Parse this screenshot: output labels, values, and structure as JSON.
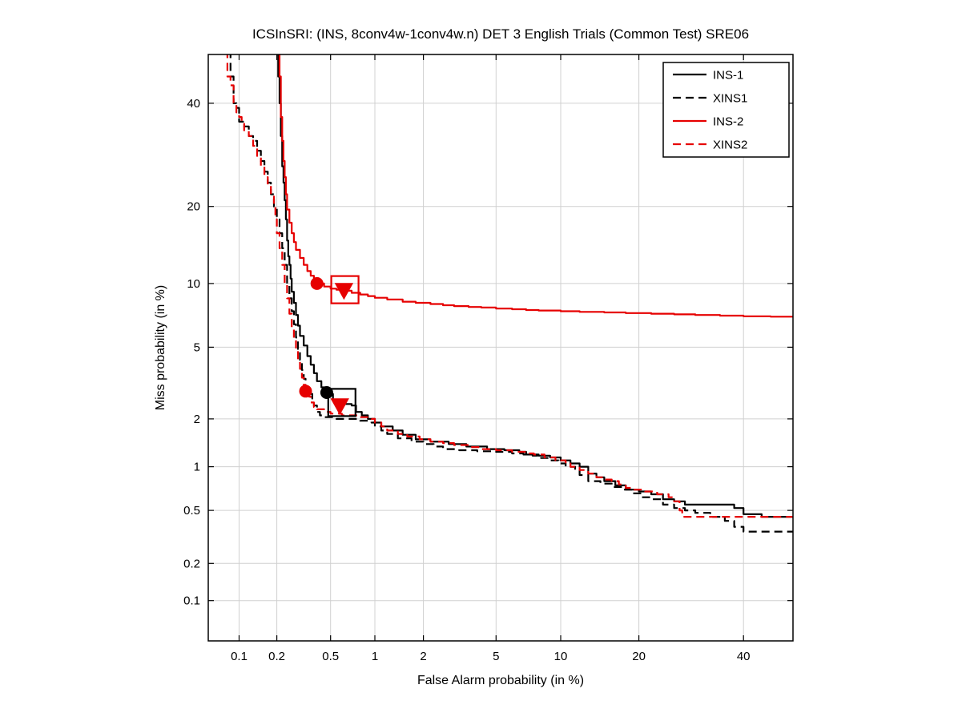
{
  "chart_data": {
    "type": "line",
    "subtype": "DET-curve",
    "scale": "probit-probit",
    "title": "ICSInSRI: (INS, 8conv4w-1conv4w.n) DET 3 English Trials (Common Test) SRE06",
    "xlabel": "False Alarm probability (in %)",
    "ylabel": "Miss probability (in %)",
    "xlim_percent": [
      0.055,
      51
    ],
    "ylim_percent": [
      0.045,
      51
    ],
    "xticks": [
      0.1,
      0.2,
      0.5,
      1,
      2,
      5,
      10,
      20,
      40
    ],
    "yticks": [
      0.1,
      0.2,
      0.5,
      1,
      2,
      5,
      10,
      20,
      40
    ],
    "grid": true,
    "legend_position": "top-right",
    "colors": {
      "black": "#000000",
      "red": "#e60000",
      "grid": "#d0d0d0"
    },
    "series": [
      {
        "name": "INS-1",
        "color": "#000000",
        "dash": "solid",
        "points": [
          [
            0.205,
            52
          ],
          [
            0.205,
            46
          ],
          [
            0.21,
            42
          ],
          [
            0.21,
            40
          ],
          [
            0.215,
            36
          ],
          [
            0.215,
            33
          ],
          [
            0.22,
            30
          ],
          [
            0.22,
            27
          ],
          [
            0.225,
            24
          ],
          [
            0.23,
            21
          ],
          [
            0.235,
            18
          ],
          [
            0.24,
            15
          ],
          [
            0.245,
            13
          ],
          [
            0.25,
            12
          ],
          [
            0.255,
            10.5
          ],
          [
            0.26,
            9.2
          ],
          [
            0.27,
            8.2
          ],
          [
            0.28,
            7.2
          ],
          [
            0.29,
            6.4
          ],
          [
            0.3,
            5.7
          ],
          [
            0.32,
            5.1
          ],
          [
            0.34,
            4.5
          ],
          [
            0.36,
            4.05
          ],
          [
            0.38,
            3.65
          ],
          [
            0.4,
            3.3
          ],
          [
            0.43,
            3.05
          ],
          [
            0.46,
            2.85
          ],
          [
            0.5,
            2.8
          ],
          [
            0.52,
            2.6
          ],
          [
            0.55,
            2.5
          ],
          [
            0.62,
            2.45
          ],
          [
            0.7,
            2.4
          ],
          [
            0.75,
            2.2
          ],
          [
            0.82,
            2.1
          ],
          [
            0.9,
            2.0
          ],
          [
            1.0,
            1.9
          ],
          [
            1.1,
            1.8
          ],
          [
            1.3,
            1.7
          ],
          [
            1.5,
            1.6
          ],
          [
            1.8,
            1.5
          ],
          [
            2.2,
            1.45
          ],
          [
            2.8,
            1.4
          ],
          [
            3.5,
            1.35
          ],
          [
            4.5,
            1.3
          ],
          [
            5.5,
            1.28
          ],
          [
            6.5,
            1.25
          ],
          [
            7.0,
            1.2
          ],
          [
            8.0,
            1.18
          ],
          [
            9.0,
            1.15
          ],
          [
            10.0,
            1.1
          ],
          [
            11.0,
            1.05
          ],
          [
            12.0,
            1.0
          ],
          [
            13.0,
            0.9
          ],
          [
            14.0,
            0.85
          ],
          [
            15.0,
            0.8
          ],
          [
            16.5,
            0.75
          ],
          [
            18.0,
            0.7
          ],
          [
            20.0,
            0.68
          ],
          [
            22.0,
            0.65
          ],
          [
            24.0,
            0.6
          ],
          [
            26.0,
            0.58
          ],
          [
            28.0,
            0.55
          ],
          [
            33.0,
            0.55
          ],
          [
            38.0,
            0.52
          ],
          [
            40.0,
            0.47
          ],
          [
            44.0,
            0.45
          ],
          [
            52.0,
            0.45
          ]
        ]
      },
      {
        "name": "XINS1",
        "color": "#000000",
        "dash": "dashed",
        "points": [
          [
            0.085,
            52
          ],
          [
            0.085,
            46
          ],
          [
            0.09,
            43
          ],
          [
            0.09,
            40
          ],
          [
            0.095,
            39
          ],
          [
            0.1,
            38
          ],
          [
            0.1,
            36
          ],
          [
            0.11,
            35
          ],
          [
            0.12,
            33
          ],
          [
            0.13,
            32
          ],
          [
            0.14,
            30
          ],
          [
            0.15,
            28
          ],
          [
            0.16,
            26
          ],
          [
            0.17,
            24
          ],
          [
            0.18,
            22
          ],
          [
            0.19,
            20
          ],
          [
            0.2,
            18
          ],
          [
            0.21,
            16
          ],
          [
            0.22,
            14
          ],
          [
            0.23,
            12
          ],
          [
            0.24,
            10
          ],
          [
            0.25,
            8.6
          ],
          [
            0.26,
            7.5
          ],
          [
            0.27,
            6.5
          ],
          [
            0.28,
            5.6
          ],
          [
            0.29,
            4.9
          ],
          [
            0.3,
            4.3
          ],
          [
            0.31,
            3.8
          ],
          [
            0.32,
            3.4
          ],
          [
            0.33,
            3.0
          ],
          [
            0.35,
            2.8
          ],
          [
            0.37,
            2.6
          ],
          [
            0.38,
            2.4
          ],
          [
            0.4,
            2.2
          ],
          [
            0.42,
            2.1
          ],
          [
            0.45,
            2.05
          ],
          [
            0.55,
            2.0
          ],
          [
            0.7,
            2.0
          ],
          [
            0.8,
            1.95
          ],
          [
            0.95,
            1.9
          ],
          [
            1.0,
            1.8
          ],
          [
            1.1,
            1.7
          ],
          [
            1.2,
            1.62
          ],
          [
            1.4,
            1.52
          ],
          [
            1.7,
            1.45
          ],
          [
            2.0,
            1.4
          ],
          [
            2.3,
            1.35
          ],
          [
            2.6,
            1.3
          ],
          [
            3.2,
            1.28
          ],
          [
            4.0,
            1.26
          ],
          [
            5.0,
            1.25
          ],
          [
            6.0,
            1.22
          ],
          [
            6.8,
            1.2
          ],
          [
            7.5,
            1.18
          ],
          [
            8.2,
            1.14
          ],
          [
            9.0,
            1.1
          ],
          [
            9.8,
            1.05
          ],
          [
            10.5,
            1.0
          ],
          [
            11.5,
            0.95
          ],
          [
            12.0,
            0.88
          ],
          [
            13.0,
            0.8
          ],
          [
            14.5,
            0.77
          ],
          [
            16.0,
            0.73
          ],
          [
            17.5,
            0.7
          ],
          [
            19.0,
            0.66
          ],
          [
            20.5,
            0.62
          ],
          [
            22.0,
            0.6
          ],
          [
            24.0,
            0.55
          ],
          [
            26.0,
            0.52
          ],
          [
            28.0,
            0.5
          ],
          [
            30.0,
            0.48
          ],
          [
            33.0,
            0.45
          ],
          [
            36.0,
            0.42
          ],
          [
            38.0,
            0.38
          ],
          [
            40.0,
            0.35
          ],
          [
            52.0,
            0.35
          ]
        ]
      },
      {
        "name": "INS-2",
        "color": "#e60000",
        "dash": "solid",
        "points": [
          [
            0.21,
            52
          ],
          [
            0.21,
            46
          ],
          [
            0.215,
            42
          ],
          [
            0.215,
            37
          ],
          [
            0.22,
            32
          ],
          [
            0.225,
            28
          ],
          [
            0.23,
            25
          ],
          [
            0.235,
            22
          ],
          [
            0.24,
            19.5
          ],
          [
            0.25,
            17.5
          ],
          [
            0.26,
            16
          ],
          [
            0.27,
            14.8
          ],
          [
            0.28,
            13.8
          ],
          [
            0.3,
            12.8
          ],
          [
            0.32,
            12.0
          ],
          [
            0.34,
            11.3
          ],
          [
            0.36,
            10.8
          ],
          [
            0.38,
            10.3
          ],
          [
            0.4,
            10.0
          ],
          [
            0.45,
            9.7
          ],
          [
            0.5,
            9.5
          ],
          [
            0.55,
            9.4
          ],
          [
            0.62,
            9.3
          ],
          [
            0.7,
            9.1
          ],
          [
            0.8,
            8.95
          ],
          [
            0.9,
            8.8
          ],
          [
            1.0,
            8.65
          ],
          [
            1.2,
            8.5
          ],
          [
            1.5,
            8.3
          ],
          [
            1.8,
            8.2
          ],
          [
            2.2,
            8.1
          ],
          [
            2.6,
            8.0
          ],
          [
            3.0,
            7.92
          ],
          [
            3.6,
            7.85
          ],
          [
            4.2,
            7.8
          ],
          [
            5.0,
            7.72
          ],
          [
            6.0,
            7.66
          ],
          [
            7.0,
            7.6
          ],
          [
            8.0,
            7.56
          ],
          [
            10.0,
            7.5
          ],
          [
            12.0,
            7.45
          ],
          [
            15.0,
            7.4
          ],
          [
            18.0,
            7.35
          ],
          [
            22.0,
            7.3
          ],
          [
            26.0,
            7.25
          ],
          [
            30.0,
            7.2
          ],
          [
            35.0,
            7.15
          ],
          [
            40.0,
            7.1
          ],
          [
            46.0,
            7.07
          ],
          [
            52.0,
            7.05
          ]
        ]
      },
      {
        "name": "XINS2",
        "color": "#e60000",
        "dash": "dashed",
        "points": [
          [
            0.08,
            52
          ],
          [
            0.08,
            46
          ],
          [
            0.085,
            44
          ],
          [
            0.09,
            42
          ],
          [
            0.09,
            40
          ],
          [
            0.095,
            38
          ],
          [
            0.1,
            37
          ],
          [
            0.105,
            36
          ],
          [
            0.11,
            34
          ],
          [
            0.12,
            33
          ],
          [
            0.13,
            31
          ],
          [
            0.14,
            29
          ],
          [
            0.15,
            27
          ],
          [
            0.16,
            25
          ],
          [
            0.17,
            23.5
          ],
          [
            0.18,
            22
          ],
          [
            0.19,
            20
          ],
          [
            0.195,
            18
          ],
          [
            0.2,
            16
          ],
          [
            0.21,
            14
          ],
          [
            0.22,
            12
          ],
          [
            0.23,
            10
          ],
          [
            0.24,
            8.6
          ],
          [
            0.25,
            7.3
          ],
          [
            0.26,
            6.3
          ],
          [
            0.27,
            5.5
          ],
          [
            0.28,
            4.8
          ],
          [
            0.29,
            4.3
          ],
          [
            0.3,
            3.85
          ],
          [
            0.31,
            3.45
          ],
          [
            0.32,
            3.15
          ],
          [
            0.33,
            2.9
          ],
          [
            0.35,
            2.7
          ],
          [
            0.36,
            2.5
          ],
          [
            0.38,
            2.35
          ],
          [
            0.4,
            2.28
          ],
          [
            0.45,
            2.2
          ],
          [
            0.5,
            2.15
          ],
          [
            0.6,
            2.1
          ],
          [
            0.8,
            2.05
          ],
          [
            0.95,
            2.0
          ],
          [
            1.0,
            1.9
          ],
          [
            1.1,
            1.8
          ],
          [
            1.2,
            1.7
          ],
          [
            1.4,
            1.62
          ],
          [
            1.6,
            1.56
          ],
          [
            1.9,
            1.5
          ],
          [
            2.2,
            1.45
          ],
          [
            2.6,
            1.42
          ],
          [
            3.0,
            1.38
          ],
          [
            3.6,
            1.34
          ],
          [
            4.2,
            1.3
          ],
          [
            5.0,
            1.28
          ],
          [
            6.0,
            1.25
          ],
          [
            7.0,
            1.22
          ],
          [
            7.6,
            1.2
          ],
          [
            8.5,
            1.15
          ],
          [
            9.5,
            1.1
          ],
          [
            10.5,
            1.05
          ],
          [
            11.0,
            1.0
          ],
          [
            12.0,
            0.95
          ],
          [
            13.0,
            0.9
          ],
          [
            14.0,
            0.85
          ],
          [
            15.0,
            0.82
          ],
          [
            16.0,
            0.8
          ],
          [
            17.0,
            0.76
          ],
          [
            18.0,
            0.72
          ],
          [
            19.0,
            0.7
          ],
          [
            21.0,
            0.68
          ],
          [
            23.0,
            0.65
          ],
          [
            25.0,
            0.62
          ],
          [
            26.0,
            0.58
          ],
          [
            27.0,
            0.5
          ],
          [
            27.5,
            0.45
          ],
          [
            52.0,
            0.45
          ]
        ]
      }
    ],
    "markers": [
      {
        "x": 0.4,
        "y": 10.0,
        "shape": "circle",
        "color": "#e60000",
        "filled": true
      },
      {
        "x": 0.62,
        "y": 9.35,
        "shape": "triangle",
        "color": "#e60000",
        "filled": true
      },
      {
        "x": 0.63,
        "y": 9.4,
        "shape": "square",
        "color": "#e60000",
        "filled": false
      },
      {
        "x": 0.33,
        "y": 2.9,
        "shape": "circle",
        "color": "#e60000",
        "filled": true
      },
      {
        "x": 0.47,
        "y": 2.85,
        "shape": "circle",
        "color": "#000000",
        "filled": true
      },
      {
        "x": 0.58,
        "y": 2.4,
        "shape": "triangle",
        "color": "#e60000",
        "filled": true
      },
      {
        "x": 0.6,
        "y": 2.5,
        "shape": "square",
        "color": "#000000",
        "filled": false
      }
    ],
    "legend": {
      "entries": [
        "INS-1",
        "XINS1",
        "INS-2",
        "XINS2"
      ]
    }
  }
}
